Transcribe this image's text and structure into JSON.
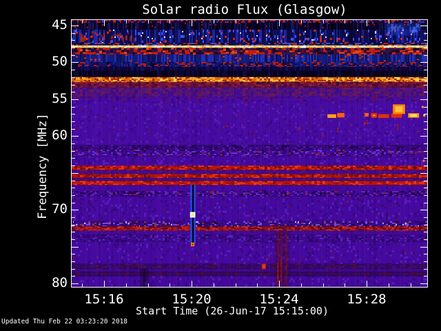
{
  "header": {
    "title": "Solar radio Flux (Glasgow)"
  },
  "footer": {
    "updated_text": "Updated Thu Feb 22 03:23:20 2018"
  },
  "chart_data": {
    "type": "heatmap",
    "title": "Solar radio Flux (Glasgow)",
    "xlabel": "Start Time (26-Jun-17 15:15:00)",
    "ylabel": "Frequency [MHz]",
    "x_start_time": "15:15:00",
    "x_date": "26-Jun-17",
    "x_ticks": [
      {
        "label": "15:16",
        "minute": 16
      },
      {
        "label": "15:20",
        "minute": 20
      },
      {
        "label": "15:24",
        "minute": 24
      },
      {
        "label": "15:28",
        "minute": 28
      }
    ],
    "x_minor_step_minutes": 1,
    "x_range_minutes_after_1500": [
      14.55,
      30.77
    ],
    "y_tick_labels": [
      {
        "label": "45",
        "mhz": 45
      },
      {
        "label": "50",
        "mhz": 50
      },
      {
        "label": "55",
        "mhz": 55
      },
      {
        "label": "60",
        "mhz": 60
      },
      {
        "label": "70",
        "mhz": 70
      },
      {
        "label": "80",
        "mhz": 80
      }
    ],
    "y_major_step_mhz": 5,
    "y_minor_step_mhz": 1,
    "y_range_mhz": [
      44.25,
      80.6
    ],
    "y_axis_inverted": true,
    "grid": false,
    "legend": false,
    "palette": {
      "background": "#000000",
      "text": "#ffffff",
      "base_purple": "#470ba6",
      "dark_navy": "#0a0426",
      "bright_cream_line": "#f2e49a",
      "orange_band": "#e06608",
      "red_line": "#bc1408"
    },
    "bands": [
      {
        "f0": 44.25,
        "f1": 44.62,
        "base": "#1c0636",
        "specks": [
          [
            "#b81c08",
            0.3,
            2,
            2
          ],
          [
            "#2c3cff",
            0.1,
            2,
            2
          ]
        ]
      },
      {
        "f0": 44.62,
        "f1": 45.55,
        "base": "#0a0426",
        "vstreaks": [
          [
            "rgba(30,40,140,0.5)",
            0.3
          ],
          [
            "rgba(0,0,0,0.4)",
            0.25
          ]
        ],
        "specks": [
          [
            "#a01808",
            0.02,
            2,
            2
          ]
        ]
      },
      {
        "f0": 45.55,
        "f1": 47.35,
        "base": "#0d0a4e",
        "vstreaks": [
          [
            "rgba(40,60,230,0.55)",
            0.4
          ],
          [
            "rgba(5,5,30,0.5)",
            0.3
          ]
        ],
        "specks": [
          [
            "#d02810",
            0.05,
            3,
            3
          ],
          [
            "#e8e8ff",
            0.015,
            2,
            2
          ],
          [
            "#3a55ff",
            0.08,
            2,
            4
          ]
        ]
      },
      {
        "f0": 47.35,
        "f1": 47.7,
        "base": "#191058",
        "specks": [
          [
            "#3a50e8",
            0.3,
            3,
            2
          ],
          [
            "#c02208",
            0.22,
            3,
            2
          ],
          [
            "#0a0530",
            0.25,
            3,
            2
          ]
        ]
      },
      {
        "f0": 47.7,
        "f1": 48.05,
        "base": "#f2e49a",
        "specks": [
          [
            "#fffce0",
            0.25,
            4,
            2
          ],
          [
            "#e8c050",
            0.3,
            4,
            2
          ],
          [
            "#e07818",
            0.1,
            3,
            1
          ]
        ]
      },
      {
        "f0": 48.05,
        "f1": 48.95,
        "base": "#351048",
        "specks": [
          [
            "#cc2008",
            0.42,
            5,
            3
          ],
          [
            "#f05818",
            0.1,
            4,
            2
          ],
          [
            "#150528",
            0.2,
            4,
            3
          ]
        ]
      },
      {
        "f0": 48.95,
        "f1": 49.95,
        "base": "#131b7e",
        "vstreaks": [
          [
            "rgba(50,70,240,0.5)",
            0.4
          ],
          [
            "rgba(8,8,40,0.5)",
            0.3
          ]
        ],
        "specks": [
          [
            "#d03010",
            0.03,
            3,
            2
          ]
        ]
      },
      {
        "f0": 49.95,
        "f1": 50.6,
        "base": "#10156a",
        "vstreaks": [
          [
            "rgba(40,60,220,0.4)",
            0.3
          ]
        ],
        "specks": [
          [
            "#c01c08",
            0.22,
            4,
            2
          ],
          [
            "#0a0435",
            0.2,
            3,
            2
          ]
        ]
      },
      {
        "f0": 50.6,
        "f1": 51.15,
        "base": "#0c063a",
        "vstreaks": [
          [
            "rgba(25,35,150,0.4)",
            0.25
          ]
        ]
      },
      {
        "f0": 51.15,
        "f1": 52.0,
        "base": "#07031c",
        "vstreaks": [
          [
            "rgba(20,25,110,0.35)",
            0.3
          ]
        ]
      },
      {
        "f0": 52.0,
        "f1": 52.65,
        "base": "#e06608",
        "specks": [
          [
            "#ffa824",
            0.35,
            4,
            2
          ],
          [
            "#ffd75a",
            0.18,
            4,
            2
          ],
          [
            "#a02005",
            0.22,
            3,
            2
          ]
        ]
      },
      {
        "f0": 52.65,
        "f1": 53.4,
        "base": "#6b1138",
        "specks": [
          [
            "#98202a",
            0.25,
            4,
            2
          ],
          [
            "#44083a",
            0.25,
            4,
            3
          ]
        ]
      },
      {
        "f0": 53.4,
        "f1": 54.65,
        "base": "#531474",
        "specks": [
          [
            "#6e1a52",
            0.2,
            4,
            3
          ],
          [
            "#3f0b8f",
            0.3,
            4,
            3
          ]
        ]
      },
      {
        "f0": 54.65,
        "f1": 55.3,
        "base": "#470ba4",
        "specks": [
          [
            "#6e1240",
            0.12,
            4,
            2
          ],
          [
            "#35077c",
            0.15,
            4,
            2
          ]
        ]
      },
      {
        "f0": 55.3,
        "f1": 61.2,
        "base": "#470ba2",
        "specks": [
          [
            "#3c0890",
            0.1,
            3,
            3
          ],
          [
            "#551bb5",
            0.08,
            3,
            3
          ],
          [
            "#6e1530",
            0.01,
            2,
            2
          ]
        ]
      },
      {
        "f0": 61.2,
        "f1": 61.85,
        "base": "#3a0884",
        "specks": [
          [
            "#23054e",
            0.28,
            4,
            2
          ],
          [
            "#551bb0",
            0.1,
            3,
            2
          ]
        ]
      },
      {
        "f0": 61.85,
        "f1": 62.7,
        "base": "#43099a",
        "specks": [
          [
            "#6a35dd",
            0.22,
            3,
            2
          ],
          [
            "#280558",
            0.25,
            3,
            2
          ],
          [
            "#8a2030",
            0.05,
            3,
            2
          ]
        ]
      },
      {
        "f0": 62.7,
        "f1": 64.0,
        "base": "#45099e",
        "specks": [
          [
            "#370780",
            0.12,
            3,
            3
          ],
          [
            "#581dbc",
            0.08,
            3,
            3
          ]
        ]
      },
      {
        "f0": 64.0,
        "f1": 64.6,
        "base": "#bc1408",
        "specks": [
          [
            "#e83812",
            0.28,
            4,
            2
          ],
          [
            "#7c1010",
            0.25,
            4,
            2
          ],
          [
            "#5a0d3a",
            0.1,
            3,
            2
          ]
        ]
      },
      {
        "f0": 64.6,
        "f1": 65.15,
        "base": "#42098f",
        "specks": [
          [
            "#6a1540",
            0.15,
            3,
            2
          ]
        ]
      },
      {
        "f0": 65.15,
        "f1": 65.7,
        "base": "#bc1408",
        "specks": [
          [
            "#e83812",
            0.28,
            4,
            2
          ],
          [
            "#7c1010",
            0.25,
            4,
            2
          ],
          [
            "#5a0d3a",
            0.1,
            3,
            2
          ]
        ]
      },
      {
        "f0": 65.7,
        "f1": 66.1,
        "base": "#42098f",
        "specks": [
          [
            "#6a1540",
            0.12,
            3,
            2
          ]
        ]
      },
      {
        "f0": 66.1,
        "f1": 66.65,
        "base": "#cc1505",
        "specks": [
          [
            "#f04010",
            0.3,
            4,
            2
          ],
          [
            "#8a1208",
            0.22,
            4,
            2
          ]
        ]
      },
      {
        "f0": 66.65,
        "f1": 67.45,
        "base": "#45099e",
        "specks": [
          [
            "#370780",
            0.1,
            3,
            3
          ]
        ]
      },
      {
        "f0": 67.45,
        "f1": 68.15,
        "base": "#400894",
        "specks": [
          [
            "#5f28c8",
            0.22,
            3,
            2
          ],
          [
            "#220549",
            0.25,
            3,
            2
          ],
          [
            "#8a2028",
            0.06,
            3,
            2
          ]
        ]
      },
      {
        "f0": 68.15,
        "f1": 71.55,
        "base": "#45099e",
        "specks": [
          [
            "#370780",
            0.1,
            3,
            3
          ],
          [
            "#581dbc",
            0.07,
            3,
            3
          ],
          [
            "#6e1530",
            0.008,
            2,
            2
          ]
        ]
      },
      {
        "f0": 71.55,
        "f1": 72.25,
        "base": "#3e0890",
        "specks": [
          [
            "#7a50f0",
            0.2,
            3,
            2
          ],
          [
            "#c8c0ff",
            0.04,
            2,
            2
          ],
          [
            "#230550",
            0.25,
            3,
            2
          ],
          [
            "#a03020",
            0.05,
            3,
            2
          ]
        ]
      },
      {
        "f0": 72.25,
        "f1": 72.85,
        "base": "#8a1220",
        "specks": [
          [
            "#c81e10",
            0.3,
            4,
            2
          ],
          [
            "#50082a",
            0.22,
            4,
            2
          ],
          [
            "#e84818",
            0.08,
            3,
            1
          ]
        ]
      },
      {
        "f0": 72.85,
        "f1": 73.4,
        "base": "#43099a",
        "specks": [
          [
            "#370780",
            0.1,
            3,
            3
          ]
        ]
      },
      {
        "f0": 73.4,
        "f1": 74.35,
        "base": "#400893",
        "specks": [
          [
            "#5a28c0",
            0.16,
            3,
            2
          ],
          [
            "#26055a",
            0.2,
            3,
            2
          ]
        ]
      },
      {
        "f0": 74.35,
        "f1": 77.35,
        "base": "#45099e",
        "specks": [
          [
            "#370780",
            0.1,
            3,
            3
          ],
          [
            "#581dbc",
            0.07,
            3,
            3
          ],
          [
            "#6e1530",
            0.008,
            2,
            2
          ]
        ]
      },
      {
        "f0": 77.35,
        "f1": 78.0,
        "base": "#330766",
        "specks": [
          [
            "#501030",
            0.22,
            4,
            2
          ],
          [
            "#420990",
            0.15,
            3,
            2
          ]
        ]
      },
      {
        "f0": 78.0,
        "f1": 78.45,
        "base": "#3d0889",
        "specks": [
          [
            "#370780",
            0.1,
            3,
            3
          ]
        ]
      },
      {
        "f0": 78.45,
        "f1": 79.0,
        "base": "#320765",
        "specks": [
          [
            "#4c0e2e",
            0.2,
            4,
            2
          ]
        ]
      },
      {
        "f0": 79.0,
        "f1": 80.6,
        "base": "#44099c",
        "specks": [
          [
            "#370780",
            0.1,
            3,
            3
          ],
          [
            "#581dbc",
            0.07,
            3,
            3
          ]
        ]
      }
    ],
    "events": [
      {
        "type": "region",
        "x0": 28.82,
        "x1": 30.39,
        "f0": 44.65,
        "f1": 46.35,
        "color": "rgba(35,75,255,0.30)",
        "streaks": 28,
        "streak_color": "rgba(80,120,255,0.4)"
      },
      {
        "type": "region",
        "x0": 14.55,
        "x1": 17.6,
        "f0": 45.7,
        "f1": 47.2,
        "color": "rgba(0,0,0,0)",
        "streaks": 30,
        "streak_color": "rgba(215,45,18,0.5)"
      },
      {
        "type": "vshade",
        "x0": 17.64,
        "x1": 18.05,
        "f0": 78.0,
        "f1": 80.6,
        "color": "rgba(8,2,22,0.32)",
        "lines": [
          17.82
        ],
        "line_color": "rgba(15,4,35,0.5)"
      },
      {
        "type": "burstline",
        "x0": 25.67,
        "x1": 30.71,
        "f0": 56.85,
        "f1": 57.55,
        "colors": [
          "#e03008",
          "#ff6010",
          "#ffa020",
          "#ffe070"
        ],
        "gap_chance": 0.28
      },
      {
        "type": "blob",
        "x0": 29.2,
        "x1": 29.76,
        "f0": 55.7,
        "f1": 57.0,
        "colors": [
          "#ff8410",
          "#ffc337"
        ]
      },
      {
        "type": "blob",
        "x0": 29.9,
        "x1": 30.4,
        "f0": 56.9,
        "f1": 57.5,
        "colors": [
          "#ff9a18",
          "#ffd860"
        ]
      },
      {
        "type": "vdash",
        "x": 26.68,
        "f0": 57.7,
        "f1": 59.3,
        "color": "rgba(165,30,18,0.85)"
      },
      {
        "type": "vdash",
        "x": 29.42,
        "f0": 57.6,
        "f1": 59.7,
        "color": "rgba(150,30,18,0.85)"
      },
      {
        "type": "vdash",
        "x": 28.03,
        "f0": 57.8,
        "f1": 58.4,
        "color": "rgba(160,30,18,0.7)"
      },
      {
        "type": "bluestreak",
        "x": 20.05,
        "f0": 66.6,
        "f1": 74.5,
        "color": "rgba(45,90,255,0.95)",
        "core": "rgba(8,10,60,0.95)"
      },
      {
        "type": "blob",
        "x0": 19.93,
        "x1": 20.17,
        "f0": 70.3,
        "f1": 71.05,
        "colors": [
          "#ffffff",
          "#ffe88a"
        ]
      },
      {
        "type": "blob",
        "x0": 19.97,
        "x1": 20.13,
        "f0": 74.45,
        "f1": 74.95,
        "colors": [
          "#ff9020",
          "#d04008"
        ]
      },
      {
        "type": "vshade",
        "x0": 23.78,
        "x1": 24.47,
        "f0": 72.9,
        "f1": 80.6,
        "color": "rgba(55,8,25,0.28)",
        "lines": [
          23.94,
          24.09,
          24.31
        ],
        "line_color": "rgba(120,18,22,0.5)"
      },
      {
        "type": "vdash",
        "x": 23.94,
        "f0": 77.2,
        "f1": 79.3,
        "color": "rgba(160,25,18,0.75)"
      },
      {
        "type": "vdash",
        "x": 24.09,
        "f0": 76.8,
        "f1": 79.5,
        "color": "rgba(150,22,16,0.7)"
      },
      {
        "type": "vdash",
        "x": 24.31,
        "f0": 77.3,
        "f1": 78.8,
        "color": "rgba(150,22,16,0.6)"
      },
      {
        "type": "blob",
        "x0": 23.21,
        "x1": 23.4,
        "f0": 77.3,
        "f1": 78.05,
        "colors": [
          "#c02010",
          "#e04818"
        ]
      },
      {
        "type": "dot",
        "x": 30.55,
        "f": 56.0,
        "color": "#ff8818"
      },
      {
        "type": "dot",
        "x": 30.62,
        "f": 57.15,
        "color": "#ffc030"
      },
      {
        "type": "dot",
        "x": 30.6,
        "f": 63.3,
        "color": "#f07c10"
      },
      {
        "type": "dot",
        "x": 24.9,
        "f": 58.9,
        "color": "#a02018"
      },
      {
        "type": "dot",
        "x": 27.9,
        "f": 58.2,
        "color": "#aa2418"
      },
      {
        "type": "dot",
        "x": 26.0,
        "f": 59.9,
        "color": "#8e1c14"
      },
      {
        "type": "dot",
        "x": 21.6,
        "f": 58.6,
        "color": "#8e1c14"
      }
    ]
  }
}
